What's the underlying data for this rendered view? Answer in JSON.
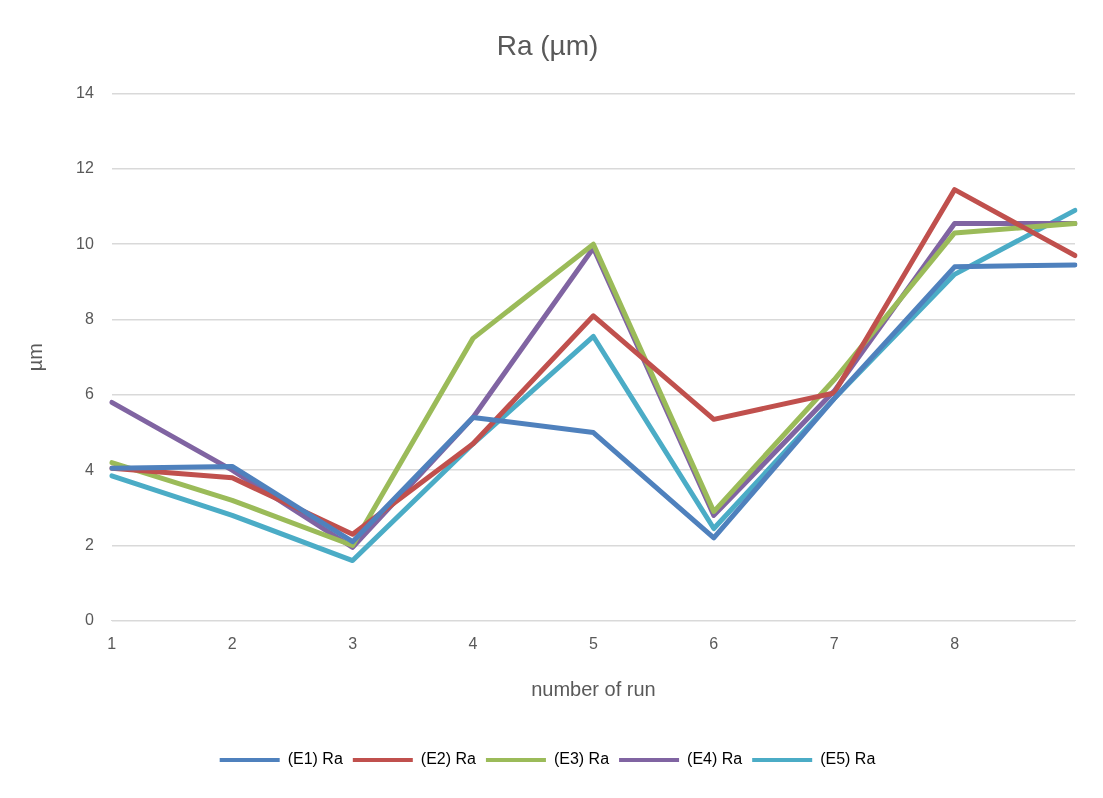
{
  "chart_data": {
    "type": "line",
    "title": "Ra (µm)",
    "xlabel": "number of run",
    "ylabel": "µm",
    "categories": [
      "1",
      "2",
      "3",
      "4",
      "5",
      "6",
      "7",
      "8",
      null
    ],
    "series": [
      {
        "name": "(E1) Ra",
        "color": "#4f81bd",
        "values": [
          4.05,
          4.1,
          2.1,
          5.4,
          5.0,
          2.2,
          5.9,
          9.4,
          9.45
        ]
      },
      {
        "name": "(E2) Ra",
        "color": "#c0504d",
        "values": [
          4.05,
          3.8,
          2.3,
          4.7,
          8.1,
          5.35,
          6.05,
          11.45,
          9.7
        ]
      },
      {
        "name": "(E3) Ra",
        "color": "#9bbb59",
        "values": [
          4.2,
          3.2,
          2.0,
          7.5,
          10.0,
          2.9,
          6.4,
          10.3,
          10.55
        ]
      },
      {
        "name": "(E4) Ra",
        "color": "#8064a2",
        "values": [
          5.8,
          4.0,
          1.95,
          5.4,
          9.9,
          2.8,
          6.1,
          10.55,
          10.55
        ]
      },
      {
        "name": "(E5) Ra",
        "color": "#4bacc6",
        "values": [
          3.85,
          2.8,
          1.6,
          4.7,
          7.55,
          2.45,
          5.9,
          9.2,
          10.9
        ]
      }
    ],
    "ylim": [
      0,
      14
    ],
    "yticks": [
      0,
      2,
      4,
      6,
      8,
      10,
      12,
      14
    ],
    "grid": "y",
    "legend": "bottom",
    "marker": "none",
    "line_style": "solid"
  }
}
